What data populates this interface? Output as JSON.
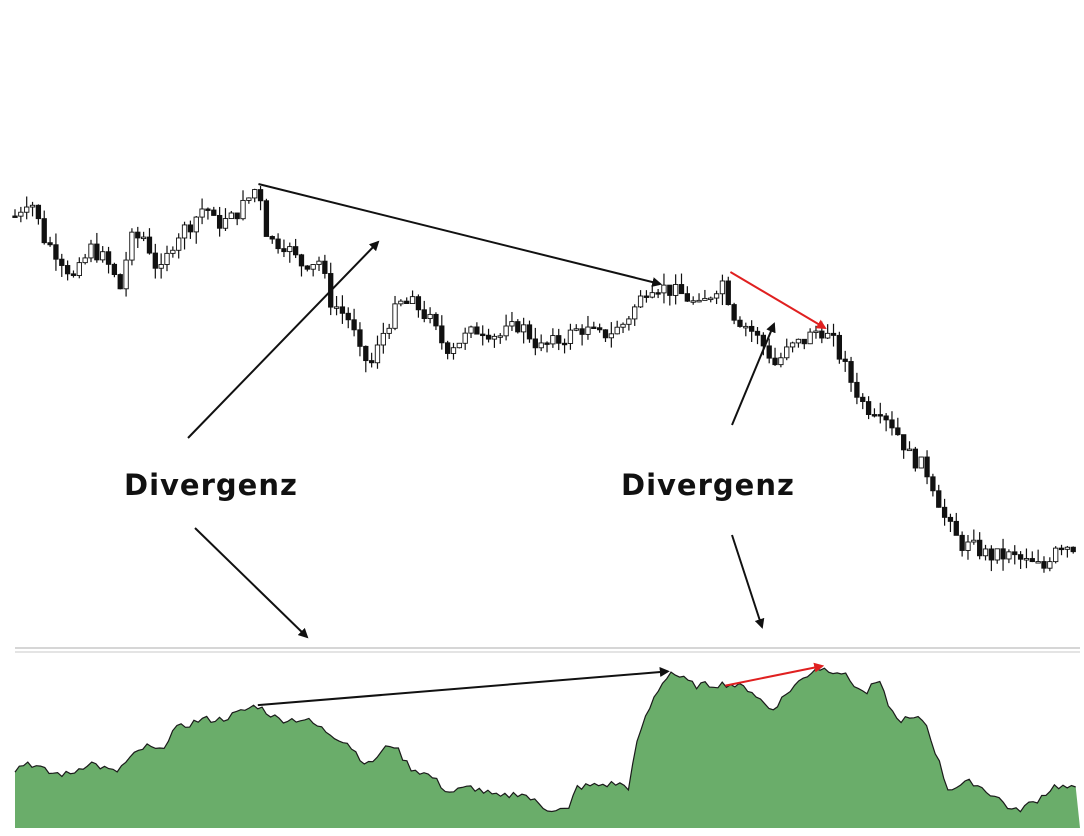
{
  "annotations": {
    "label_left": "Divergenz",
    "label_right": "Divergenz"
  },
  "colors": {
    "indicator_fill": "#6aad6a",
    "indicator_line": "#1a1a1a",
    "bull_candle": "#ffffff",
    "bear_candle": "#111111",
    "divergence_main": "#111111",
    "divergence_secondary": "#e02020",
    "separator": "#c8c8c8"
  },
  "chart_data": [
    {
      "type": "candlestick",
      "title": "",
      "xlabel": "",
      "ylabel": "",
      "grid": false,
      "note_scale": "relative",
      "close_path": [
        [
          0,
          96
        ],
        [
          1.4,
          101
        ],
        [
          2.8,
          90
        ],
        [
          4.2,
          86
        ],
        [
          5.6,
          80
        ],
        [
          7.1,
          88
        ],
        [
          8.5,
          85
        ],
        [
          9.9,
          78
        ],
        [
          10.8,
          90
        ],
        [
          12.2,
          91
        ],
        [
          13.6,
          81
        ],
        [
          15.1,
          91
        ],
        [
          16.5,
          94
        ],
        [
          17.9,
          99
        ],
        [
          18.8,
          94
        ],
        [
          20.2,
          95
        ],
        [
          21.6,
          99
        ],
        [
          22.9,
          104
        ],
        [
          23.8,
          90
        ],
        [
          25.4,
          89
        ],
        [
          26.8,
          84
        ],
        [
          28.7,
          85
        ],
        [
          29.6,
          75
        ],
        [
          31.5,
          70
        ],
        [
          32.5,
          61
        ],
        [
          33.6,
          59
        ],
        [
          34.8,
          68
        ],
        [
          36.2,
          74
        ],
        [
          37.6,
          74
        ],
        [
          39,
          70
        ],
        [
          40.5,
          63
        ],
        [
          41.9,
          65
        ],
        [
          43.7,
          68
        ],
        [
          45.6,
          66
        ],
        [
          47.5,
          69
        ],
        [
          49.4,
          63
        ],
        [
          51.3,
          65
        ],
        [
          53.2,
          68
        ],
        [
          55,
          66
        ],
        [
          56.9,
          68
        ],
        [
          58.3,
          73
        ],
        [
          59.7,
          79
        ],
        [
          61.1,
          78
        ],
        [
          63,
          76
        ],
        [
          64.4,
          73
        ],
        [
          65.9,
          78
        ],
        [
          66.5,
          80
        ],
        [
          67.7,
          71
        ],
        [
          69.1,
          68
        ],
        [
          70.6,
          63
        ],
        [
          71.5,
          59
        ],
        [
          72.9,
          63
        ],
        [
          74.3,
          65
        ],
        [
          75.7,
          68
        ],
        [
          77.1,
          64
        ],
        [
          78.6,
          55
        ],
        [
          80,
          48
        ],
        [
          81.4,
          48
        ],
        [
          82.8,
          43
        ],
        [
          84.2,
          36
        ],
        [
          85.6,
          33
        ],
        [
          86.5,
          28
        ],
        [
          87.5,
          20
        ],
        [
          88.9,
          14
        ],
        [
          90.3,
          13
        ],
        [
          91.7,
          11
        ],
        [
          93.6,
          11
        ],
        [
          95.5,
          9
        ],
        [
          96.9,
          8
        ],
        [
          97.8,
          14
        ],
        [
          98.8,
          14
        ],
        [
          100,
          13
        ]
      ],
      "trendlines": [
        {
          "from": [
            22.9,
            104
          ],
          "to": [
            60.7,
            79
          ],
          "color": "#111111"
        },
        {
          "from": [
            67.3,
            82
          ],
          "to": [
            76.2,
            68
          ],
          "color": "#e02020"
        }
      ]
    },
    {
      "type": "area",
      "title": "",
      "xlabel": "",
      "ylabel": "",
      "grid": false,
      "ylim": [
        0,
        100
      ],
      "series": [
        [
          0,
          33
        ],
        [
          1.2,
          37
        ],
        [
          3.2,
          31
        ],
        [
          5.1,
          30
        ],
        [
          7,
          37
        ],
        [
          9.4,
          31
        ],
        [
          11,
          40
        ],
        [
          12.3,
          46
        ],
        [
          13.6,
          43
        ],
        [
          14.9,
          55
        ],
        [
          17.5,
          61
        ],
        [
          19.4,
          61
        ],
        [
          21.1,
          65
        ],
        [
          22.7,
          69
        ],
        [
          24.7,
          61
        ],
        [
          27.3,
          61
        ],
        [
          29.9,
          52
        ],
        [
          31.2,
          48
        ],
        [
          33.1,
          35
        ],
        [
          35.4,
          48
        ],
        [
          37.1,
          34
        ],
        [
          39.1,
          29
        ],
        [
          40.7,
          20
        ],
        [
          42.9,
          23
        ],
        [
          45.5,
          17
        ],
        [
          47.5,
          20
        ],
        [
          49.8,
          11
        ],
        [
          52,
          10
        ],
        [
          52.7,
          23
        ],
        [
          56.6,
          25
        ],
        [
          57.6,
          23
        ],
        [
          58.6,
          53
        ],
        [
          60.2,
          76
        ],
        [
          61.5,
          88
        ],
        [
          63.8,
          80
        ],
        [
          67,
          81
        ],
        [
          69,
          78
        ],
        [
          71,
          66
        ],
        [
          73,
          79
        ],
        [
          75.2,
          90
        ],
        [
          77.5,
          88
        ],
        [
          79.8,
          75
        ],
        [
          81,
          83
        ],
        [
          82.7,
          61
        ],
        [
          85.4,
          61
        ],
        [
          87.6,
          22
        ],
        [
          89.9,
          26
        ],
        [
          92.5,
          16
        ],
        [
          93.8,
          9
        ],
        [
          95.8,
          15
        ],
        [
          97.7,
          24
        ],
        [
          100,
          21
        ]
      ],
      "trendlines": [
        {
          "from": [
            22.8,
            69
          ],
          "to": [
            61.3,
            88
          ],
          "color": "#111111"
        },
        {
          "from": [
            66.7,
            80
          ],
          "to": [
            75.8,
            91
          ],
          "color": "#e02020"
        }
      ]
    }
  ]
}
